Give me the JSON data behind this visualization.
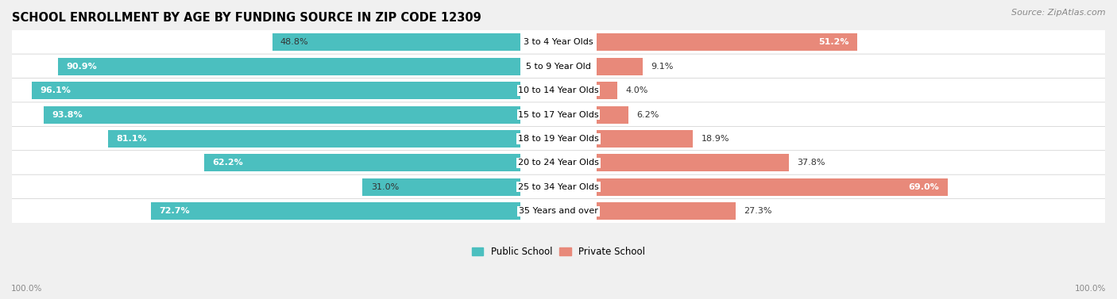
{
  "title": "SCHOOL ENROLLMENT BY AGE BY FUNDING SOURCE IN ZIP CODE 12309",
  "source": "Source: ZipAtlas.com",
  "categories": [
    "3 to 4 Year Olds",
    "5 to 9 Year Old",
    "10 to 14 Year Olds",
    "15 to 17 Year Olds",
    "18 to 19 Year Olds",
    "20 to 24 Year Olds",
    "25 to 34 Year Olds",
    "35 Years and over"
  ],
  "public_values": [
    48.8,
    90.9,
    96.1,
    93.8,
    81.1,
    62.2,
    31.0,
    72.7
  ],
  "private_values": [
    51.2,
    9.1,
    4.0,
    6.2,
    18.9,
    37.8,
    69.0,
    27.3
  ],
  "public_color": "#4BBFBF",
  "private_color": "#E8897A",
  "public_label": "Public School",
  "private_label": "Private School",
  "background_color": "#f0f0f0",
  "row_bg_color": "#ffffff",
  "bar_height": 0.72,
  "axis_label_left": "100.0%",
  "axis_label_right": "100.0%",
  "title_fontsize": 10.5,
  "source_fontsize": 8,
  "label_fontsize": 8,
  "category_fontsize": 8
}
